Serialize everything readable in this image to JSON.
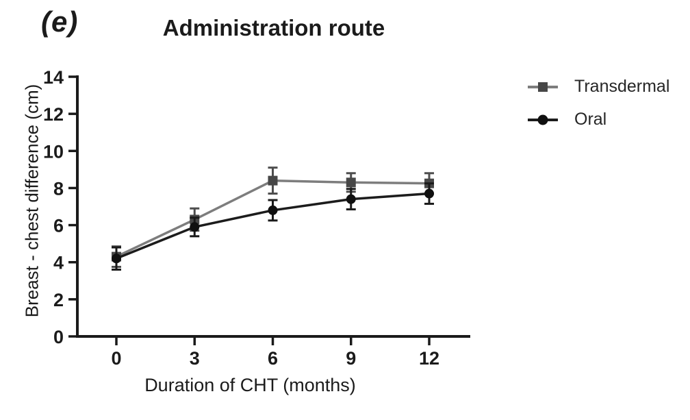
{
  "panel_label": "(e)",
  "title": "Administration route",
  "axes": {
    "x_title": "Duration of CHT (months)",
    "y_title": "Breast - chest difference (cm)"
  },
  "legend": [
    {
      "name": "Transdermal"
    },
    {
      "name": "Oral"
    }
  ],
  "colors": {
    "axis": "#1a1a1a",
    "transdermal_line": "#7d7d7d",
    "transdermal_marker": "#474747",
    "transdermal_error": "#4d4d4d",
    "oral_line": "#1c1c1c",
    "oral_marker": "#101010",
    "oral_error": "#1a1a1a"
  },
  "chart_data": {
    "type": "line",
    "title": "Administration route",
    "xlabel": "Duration of CHT (months)",
    "ylabel": "Breast - chest difference (cm)",
    "x": [
      0,
      3,
      6,
      9,
      12
    ],
    "x_ticks": [
      0,
      3,
      6,
      9,
      12
    ],
    "y_ticks": [
      0,
      2,
      4,
      6,
      8,
      10,
      12,
      14
    ],
    "xlim": [
      -1.5,
      13.6
    ],
    "ylim": [
      0,
      14
    ],
    "grid": false,
    "legend_position": "right",
    "error_bars": true,
    "series": [
      {
        "name": "Transdermal",
        "marker": "square",
        "values": [
          4.3,
          6.3,
          8.4,
          8.3,
          8.25
        ],
        "errors": [
          0.55,
          0.6,
          0.7,
          0.5,
          0.55
        ]
      },
      {
        "name": "Oral",
        "marker": "circle",
        "values": [
          4.2,
          5.9,
          6.8,
          7.4,
          7.7
        ],
        "errors": [
          0.6,
          0.5,
          0.55,
          0.55,
          0.55
        ]
      }
    ]
  }
}
